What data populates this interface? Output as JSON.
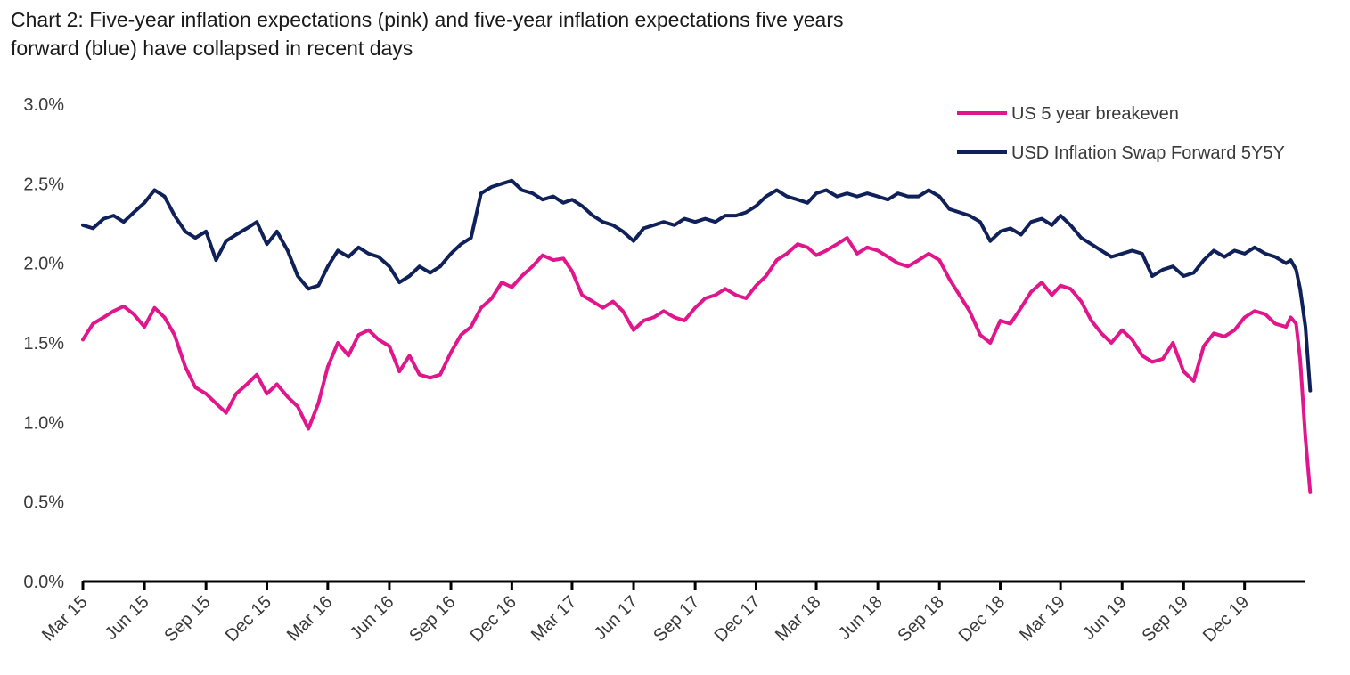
{
  "chart_data": {
    "type": "line",
    "title_line1": "Chart 2: Five-year inflation expectations (pink) and five-year inflation expectations five years",
    "title_line2": "forward (blue) have collapsed in recent days",
    "xlabel": "",
    "ylabel": "",
    "ylim": [
      0,
      3
    ],
    "yticks": [
      {
        "value": 0.0,
        "label": "0.0%"
      },
      {
        "value": 0.5,
        "label": "0.5%"
      },
      {
        "value": 1.0,
        "label": "1.0%"
      },
      {
        "value": 1.5,
        "label": "1.5%"
      },
      {
        "value": 2.0,
        "label": "2.0%"
      },
      {
        "value": 2.5,
        "label": "2.5%"
      },
      {
        "value": 3.0,
        "label": "3.0%"
      }
    ],
    "xlim": [
      "2015-03",
      "2020-03"
    ],
    "xticks": [
      {
        "value": "2015-03",
        "label": "Mar 15"
      },
      {
        "value": "2015-06",
        "label": "Jun 15"
      },
      {
        "value": "2015-09",
        "label": "Sep 15"
      },
      {
        "value": "2015-12",
        "label": "Dec 15"
      },
      {
        "value": "2016-03",
        "label": "Mar 16"
      },
      {
        "value": "2016-06",
        "label": "Jun 16"
      },
      {
        "value": "2016-09",
        "label": "Sep 16"
      },
      {
        "value": "2016-12",
        "label": "Dec 16"
      },
      {
        "value": "2017-03",
        "label": "Mar 17"
      },
      {
        "value": "2017-06",
        "label": "Jun 17"
      },
      {
        "value": "2017-09",
        "label": "Sep 17"
      },
      {
        "value": "2017-12",
        "label": "Dec 17"
      },
      {
        "value": "2018-03",
        "label": "Mar 18"
      },
      {
        "value": "2018-06",
        "label": "Jun 18"
      },
      {
        "value": "2018-09",
        "label": "Sep 18"
      },
      {
        "value": "2018-12",
        "label": "Dec 18"
      },
      {
        "value": "2019-03",
        "label": "Mar 19"
      },
      {
        "value": "2019-06",
        "label": "Jun 19"
      },
      {
        "value": "2019-09",
        "label": "Sep 19"
      },
      {
        "value": "2019-12",
        "label": "Dec 19"
      }
    ],
    "grid": false,
    "legend_position": "top-right",
    "series": [
      {
        "name": "US 5 year breakeven",
        "color": "#e0168c",
        "points": [
          [
            "2015-03-01",
            1.52
          ],
          [
            "2015-03-16",
            1.62
          ],
          [
            "2015-04-01",
            1.66
          ],
          [
            "2015-04-16",
            1.7
          ],
          [
            "2015-05-01",
            1.73
          ],
          [
            "2015-05-16",
            1.68
          ],
          [
            "2015-06-01",
            1.6
          ],
          [
            "2015-06-16",
            1.72
          ],
          [
            "2015-07-01",
            1.66
          ],
          [
            "2015-07-16",
            1.55
          ],
          [
            "2015-08-01",
            1.35
          ],
          [
            "2015-08-16",
            1.22
          ],
          [
            "2015-09-01",
            1.18
          ],
          [
            "2015-09-16",
            1.12
          ],
          [
            "2015-10-01",
            1.06
          ],
          [
            "2015-10-16",
            1.18
          ],
          [
            "2015-11-01",
            1.24
          ],
          [
            "2015-11-16",
            1.3
          ],
          [
            "2015-12-01",
            1.18
          ],
          [
            "2015-12-16",
            1.24
          ],
          [
            "2016-01-01",
            1.16
          ],
          [
            "2016-01-16",
            1.1
          ],
          [
            "2016-02-01",
            0.96
          ],
          [
            "2016-02-16",
            1.12
          ],
          [
            "2016-03-01",
            1.35
          ],
          [
            "2016-03-16",
            1.5
          ],
          [
            "2016-04-01",
            1.42
          ],
          [
            "2016-04-16",
            1.55
          ],
          [
            "2016-05-01",
            1.58
          ],
          [
            "2016-05-16",
            1.52
          ],
          [
            "2016-06-01",
            1.48
          ],
          [
            "2016-06-16",
            1.32
          ],
          [
            "2016-07-01",
            1.42
          ],
          [
            "2016-07-16",
            1.3
          ],
          [
            "2016-08-01",
            1.28
          ],
          [
            "2016-08-16",
            1.3
          ],
          [
            "2016-09-01",
            1.44
          ],
          [
            "2016-09-16",
            1.55
          ],
          [
            "2016-10-01",
            1.6
          ],
          [
            "2016-10-16",
            1.72
          ],
          [
            "2016-11-01",
            1.78
          ],
          [
            "2016-11-16",
            1.88
          ],
          [
            "2016-12-01",
            1.85
          ],
          [
            "2016-12-16",
            1.92
          ],
          [
            "2017-01-01",
            1.98
          ],
          [
            "2017-01-16",
            2.05
          ],
          [
            "2017-02-01",
            2.02
          ],
          [
            "2017-02-16",
            2.03
          ],
          [
            "2017-03-01",
            1.95
          ],
          [
            "2017-03-16",
            1.8
          ],
          [
            "2017-04-01",
            1.76
          ],
          [
            "2017-04-16",
            1.72
          ],
          [
            "2017-05-01",
            1.76
          ],
          [
            "2017-05-16",
            1.7
          ],
          [
            "2017-06-01",
            1.58
          ],
          [
            "2017-06-16",
            1.64
          ],
          [
            "2017-07-01",
            1.66
          ],
          [
            "2017-07-16",
            1.7
          ],
          [
            "2017-08-01",
            1.66
          ],
          [
            "2017-08-16",
            1.64
          ],
          [
            "2017-09-01",
            1.72
          ],
          [
            "2017-09-16",
            1.78
          ],
          [
            "2017-10-01",
            1.8
          ],
          [
            "2017-10-16",
            1.84
          ],
          [
            "2017-11-01",
            1.8
          ],
          [
            "2017-11-16",
            1.78
          ],
          [
            "2017-12-01",
            1.86
          ],
          [
            "2017-12-16",
            1.92
          ],
          [
            "2018-01-01",
            2.02
          ],
          [
            "2018-01-16",
            2.06
          ],
          [
            "2018-02-01",
            2.12
          ],
          [
            "2018-02-16",
            2.1
          ],
          [
            "2018-03-01",
            2.05
          ],
          [
            "2018-03-16",
            2.08
          ],
          [
            "2018-04-01",
            2.12
          ],
          [
            "2018-04-16",
            2.16
          ],
          [
            "2018-05-01",
            2.06
          ],
          [
            "2018-05-16",
            2.1
          ],
          [
            "2018-06-01",
            2.08
          ],
          [
            "2018-06-16",
            2.04
          ],
          [
            "2018-07-01",
            2.0
          ],
          [
            "2018-07-16",
            1.98
          ],
          [
            "2018-08-01",
            2.02
          ],
          [
            "2018-08-16",
            2.06
          ],
          [
            "2018-09-01",
            2.02
          ],
          [
            "2018-09-16",
            1.9
          ],
          [
            "2018-10-01",
            1.8
          ],
          [
            "2018-10-16",
            1.7
          ],
          [
            "2018-11-01",
            1.55
          ],
          [
            "2018-11-16",
            1.5
          ],
          [
            "2018-12-01",
            1.64
          ],
          [
            "2018-12-16",
            1.62
          ],
          [
            "2019-01-01",
            1.72
          ],
          [
            "2019-01-16",
            1.82
          ],
          [
            "2019-02-01",
            1.88
          ],
          [
            "2019-02-16",
            1.8
          ],
          [
            "2019-03-01",
            1.86
          ],
          [
            "2019-03-16",
            1.84
          ],
          [
            "2019-04-01",
            1.76
          ],
          [
            "2019-04-16",
            1.64
          ],
          [
            "2019-05-01",
            1.56
          ],
          [
            "2019-05-16",
            1.5
          ],
          [
            "2019-06-01",
            1.58
          ],
          [
            "2019-06-16",
            1.52
          ],
          [
            "2019-07-01",
            1.42
          ],
          [
            "2019-07-16",
            1.38
          ],
          [
            "2019-08-01",
            1.4
          ],
          [
            "2019-08-16",
            1.5
          ],
          [
            "2019-09-01",
            1.32
          ],
          [
            "2019-09-16",
            1.26
          ],
          [
            "2019-10-01",
            1.48
          ],
          [
            "2019-10-16",
            1.56
          ],
          [
            "2019-11-01",
            1.54
          ],
          [
            "2019-11-16",
            1.58
          ],
          [
            "2019-12-01",
            1.66
          ],
          [
            "2019-12-16",
            1.7
          ],
          [
            "2020-01-01",
            1.68
          ],
          [
            "2020-01-16",
            1.62
          ],
          [
            "2020-02-01",
            1.6
          ],
          [
            "2020-02-08",
            1.66
          ],
          [
            "2020-02-16",
            1.62
          ],
          [
            "2020-02-22",
            1.4
          ],
          [
            "2020-03-01",
            0.9
          ],
          [
            "2020-03-08",
            0.56
          ]
        ]
      },
      {
        "name": "USD Inflation Swap Forward 5Y5Y",
        "color": "#0f2158",
        "points": [
          [
            "2015-03-01",
            2.24
          ],
          [
            "2015-03-16",
            2.22
          ],
          [
            "2015-04-01",
            2.28
          ],
          [
            "2015-04-16",
            2.3
          ],
          [
            "2015-05-01",
            2.26
          ],
          [
            "2015-05-16",
            2.32
          ],
          [
            "2015-06-01",
            2.38
          ],
          [
            "2015-06-16",
            2.46
          ],
          [
            "2015-07-01",
            2.42
          ],
          [
            "2015-07-16",
            2.3
          ],
          [
            "2015-08-01",
            2.2
          ],
          [
            "2015-08-16",
            2.16
          ],
          [
            "2015-09-01",
            2.2
          ],
          [
            "2015-09-16",
            2.02
          ],
          [
            "2015-10-01",
            2.14
          ],
          [
            "2015-10-16",
            2.18
          ],
          [
            "2015-11-01",
            2.22
          ],
          [
            "2015-11-16",
            2.26
          ],
          [
            "2015-12-01",
            2.12
          ],
          [
            "2015-12-16",
            2.2
          ],
          [
            "2016-01-01",
            2.08
          ],
          [
            "2016-01-16",
            1.92
          ],
          [
            "2016-02-01",
            1.84
          ],
          [
            "2016-02-16",
            1.86
          ],
          [
            "2016-03-01",
            1.98
          ],
          [
            "2016-03-16",
            2.08
          ],
          [
            "2016-04-01",
            2.04
          ],
          [
            "2016-04-16",
            2.1
          ],
          [
            "2016-05-01",
            2.06
          ],
          [
            "2016-05-16",
            2.04
          ],
          [
            "2016-06-01",
            1.98
          ],
          [
            "2016-06-16",
            1.88
          ],
          [
            "2016-07-01",
            1.92
          ],
          [
            "2016-07-16",
            1.98
          ],
          [
            "2016-08-01",
            1.94
          ],
          [
            "2016-08-16",
            1.98
          ],
          [
            "2016-09-01",
            2.06
          ],
          [
            "2016-09-16",
            2.12
          ],
          [
            "2016-10-01",
            2.16
          ],
          [
            "2016-10-16",
            2.44
          ],
          [
            "2016-11-01",
            2.48
          ],
          [
            "2016-11-16",
            2.5
          ],
          [
            "2016-12-01",
            2.52
          ],
          [
            "2016-12-16",
            2.46
          ],
          [
            "2017-01-01",
            2.44
          ],
          [
            "2017-01-16",
            2.4
          ],
          [
            "2017-02-01",
            2.42
          ],
          [
            "2017-02-16",
            2.38
          ],
          [
            "2017-03-01",
            2.4
          ],
          [
            "2017-03-16",
            2.36
          ],
          [
            "2017-04-01",
            2.3
          ],
          [
            "2017-04-16",
            2.26
          ],
          [
            "2017-05-01",
            2.24
          ],
          [
            "2017-05-16",
            2.2
          ],
          [
            "2017-06-01",
            2.14
          ],
          [
            "2017-06-16",
            2.22
          ],
          [
            "2017-07-01",
            2.24
          ],
          [
            "2017-07-16",
            2.26
          ],
          [
            "2017-08-01",
            2.24
          ],
          [
            "2017-08-16",
            2.28
          ],
          [
            "2017-09-01",
            2.26
          ],
          [
            "2017-09-16",
            2.28
          ],
          [
            "2017-10-01",
            2.26
          ],
          [
            "2017-10-16",
            2.3
          ],
          [
            "2017-11-01",
            2.3
          ],
          [
            "2017-11-16",
            2.32
          ],
          [
            "2017-12-01",
            2.36
          ],
          [
            "2017-12-16",
            2.42
          ],
          [
            "2018-01-01",
            2.46
          ],
          [
            "2018-01-16",
            2.42
          ],
          [
            "2018-02-01",
            2.4
          ],
          [
            "2018-02-16",
            2.38
          ],
          [
            "2018-03-01",
            2.44
          ],
          [
            "2018-03-16",
            2.46
          ],
          [
            "2018-04-01",
            2.42
          ],
          [
            "2018-04-16",
            2.44
          ],
          [
            "2018-05-01",
            2.42
          ],
          [
            "2018-05-16",
            2.44
          ],
          [
            "2018-06-01",
            2.42
          ],
          [
            "2018-06-16",
            2.4
          ],
          [
            "2018-07-01",
            2.44
          ],
          [
            "2018-07-16",
            2.42
          ],
          [
            "2018-08-01",
            2.42
          ],
          [
            "2018-08-16",
            2.46
          ],
          [
            "2018-09-01",
            2.42
          ],
          [
            "2018-09-16",
            2.34
          ],
          [
            "2018-10-01",
            2.32
          ],
          [
            "2018-10-16",
            2.3
          ],
          [
            "2018-11-01",
            2.26
          ],
          [
            "2018-11-16",
            2.14
          ],
          [
            "2018-12-01",
            2.2
          ],
          [
            "2018-12-16",
            2.22
          ],
          [
            "2019-01-01",
            2.18
          ],
          [
            "2019-01-16",
            2.26
          ],
          [
            "2019-02-01",
            2.28
          ],
          [
            "2019-02-16",
            2.24
          ],
          [
            "2019-03-01",
            2.3
          ],
          [
            "2019-03-16",
            2.24
          ],
          [
            "2019-04-01",
            2.16
          ],
          [
            "2019-04-16",
            2.12
          ],
          [
            "2019-05-01",
            2.08
          ],
          [
            "2019-05-16",
            2.04
          ],
          [
            "2019-06-01",
            2.06
          ],
          [
            "2019-06-16",
            2.08
          ],
          [
            "2019-07-01",
            2.06
          ],
          [
            "2019-07-16",
            1.92
          ],
          [
            "2019-08-01",
            1.96
          ],
          [
            "2019-08-16",
            1.98
          ],
          [
            "2019-09-01",
            1.92
          ],
          [
            "2019-09-16",
            1.94
          ],
          [
            "2019-10-01",
            2.02
          ],
          [
            "2019-10-16",
            2.08
          ],
          [
            "2019-11-01",
            2.04
          ],
          [
            "2019-11-16",
            2.08
          ],
          [
            "2019-12-01",
            2.06
          ],
          [
            "2019-12-16",
            2.1
          ],
          [
            "2020-01-01",
            2.06
          ],
          [
            "2020-01-16",
            2.04
          ],
          [
            "2020-02-01",
            2.0
          ],
          [
            "2020-02-08",
            2.02
          ],
          [
            "2020-02-16",
            1.96
          ],
          [
            "2020-02-22",
            1.84
          ],
          [
            "2020-03-01",
            1.6
          ],
          [
            "2020-03-08",
            1.2
          ]
        ]
      }
    ]
  }
}
